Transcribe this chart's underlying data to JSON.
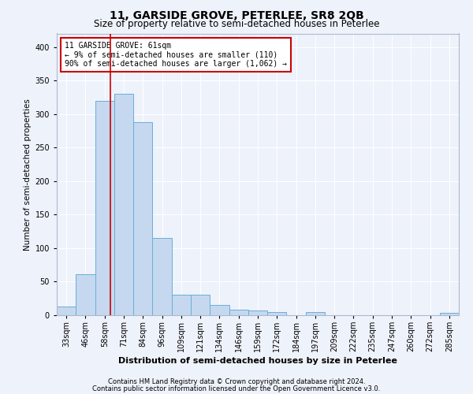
{
  "title": "11, GARSIDE GROVE, PETERLEE, SR8 2QB",
  "subtitle": "Size of property relative to semi-detached houses in Peterlee",
  "xlabel": "Distribution of semi-detached houses by size in Peterlee",
  "ylabel": "Number of semi-detached properties",
  "footnote1": "Contains HM Land Registry data © Crown copyright and database right 2024.",
  "footnote2": "Contains public sector information licensed under the Open Government Licence v3.0.",
  "annotation_line1": "11 GARSIDE GROVE: 61sqm",
  "annotation_line2": "← 9% of semi-detached houses are smaller (110)",
  "annotation_line3": "90% of semi-detached houses are larger (1,062) →",
  "bar_color": "#c5d8f0",
  "bar_edge_color": "#6aaed6",
  "vline_color": "#cc0000",
  "vline_x_index": 2,
  "categories": [
    "33sqm",
    "46sqm",
    "58sqm",
    "71sqm",
    "84sqm",
    "96sqm",
    "109sqm",
    "121sqm",
    "134sqm",
    "146sqm",
    "159sqm",
    "172sqm",
    "184sqm",
    "197sqm",
    "209sqm",
    "222sqm",
    "235sqm",
    "247sqm",
    "260sqm",
    "272sqm",
    "285sqm"
  ],
  "values": [
    13,
    61,
    320,
    330,
    288,
    115,
    30,
    30,
    15,
    8,
    7,
    5,
    0,
    5,
    0,
    0,
    0,
    0,
    0,
    0,
    4
  ],
  "ylim": [
    0,
    420
  ],
  "yticks": [
    0,
    50,
    100,
    150,
    200,
    250,
    300,
    350,
    400
  ],
  "background_color": "#eef2fb",
  "grid_color": "#ffffff",
  "title_fontsize": 10,
  "subtitle_fontsize": 8.5,
  "tick_fontsize": 7,
  "ylabel_fontsize": 7.5,
  "xlabel_fontsize": 8,
  "footnote_fontsize": 6,
  "annot_fontsize": 7
}
